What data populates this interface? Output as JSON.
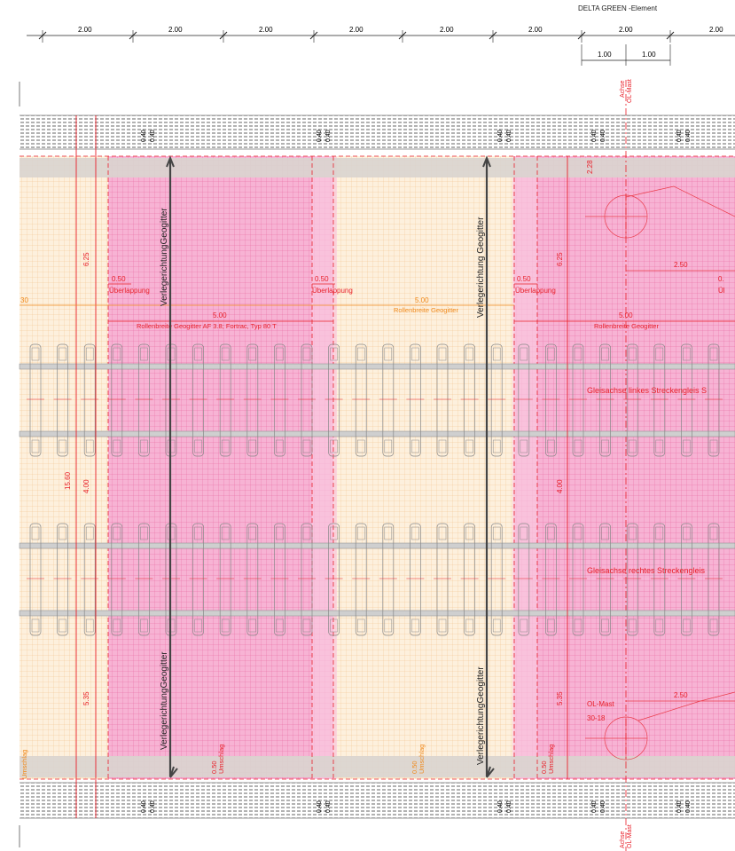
{
  "header": {
    "label": "DELTA   GREEN -Element"
  },
  "top_dims": [
    "2.00",
    "2.00",
    "2.00",
    "2.00",
    "2.00",
    "2.00",
    "2.00",
    "2.00"
  ],
  "sub_dims": [
    "1.00",
    "1.00"
  ],
  "axis_labels": {
    "achse": "Achse",
    "ol_mast": "OL-Mast"
  },
  "small_dim": "0.40",
  "direction_labels": [
    "VerlegerichtungGeogitter",
    "Verlegerichtung Geogitter",
    "VerlegerichtungGeogitter",
    "VerlegerichtungGeogitter"
  ],
  "overlap": {
    "value": "0.50",
    "label": "Überlappung"
  },
  "roll_width": {
    "value": "5.00",
    "label_1": "Rollenbreite Geogitter AF 3.8; Fortrac, Typ 80 T",
    "label_2": "Rollenbreite Geogitter",
    "label_3": "Rollenbreite Geogitter"
  },
  "left_partial": "30",
  "vertical_dims": {
    "d625": "6.25",
    "d1560": "15.60",
    "d400": "4.00",
    "d535": "5.35",
    "d228": "2.28"
  },
  "mast": {
    "dim": "2.50",
    "label": "OL-Mast",
    "id": "30-18",
    "partial": "0.",
    "partial_label": "Ül"
  },
  "umschlag": {
    "value": "0.50",
    "label": "Umschlag",
    "partial": "Umschlag"
  },
  "tracks": {
    "left": "Gleisachse linkes Streckengleis S",
    "right": "Gleisachse rechtes Streckengleis"
  },
  "colors": {
    "red": "#e8202a",
    "pink_fill": "#f6a8cf",
    "orange_fill": "#fde7c8",
    "gray_band": "#d9d4cf",
    "black": "#222222",
    "orange_text": "#f08a1c"
  }
}
